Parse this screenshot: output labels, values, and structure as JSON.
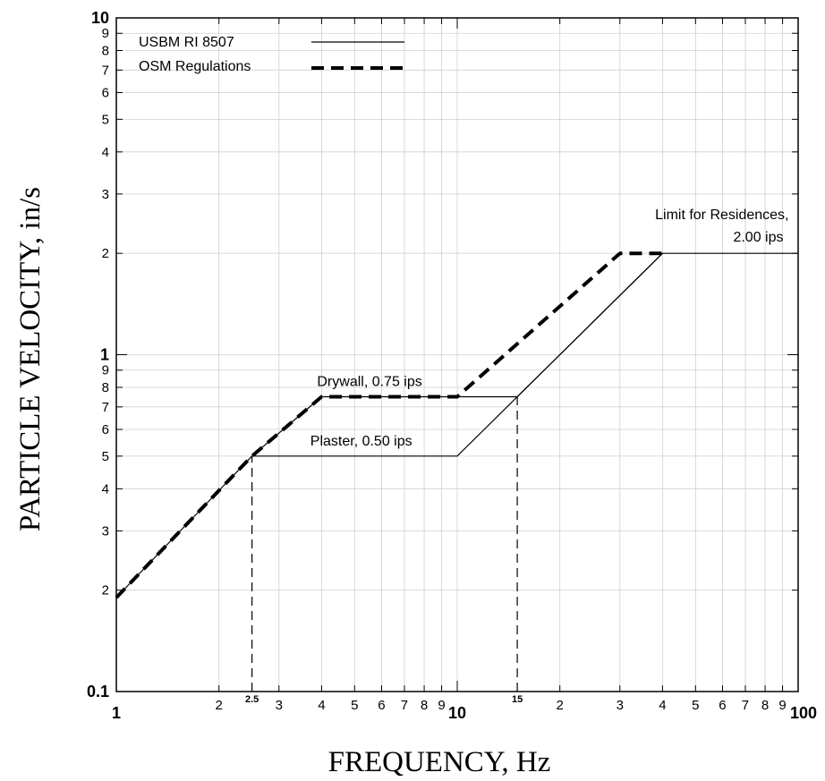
{
  "chart_data": {
    "type": "line",
    "xlabel": "FREQUENCY, Hz",
    "ylabel": "PARTICLE VELOCITY, in/s",
    "x_scale": "log",
    "y_scale": "log",
    "xlim": [
      1,
      100
    ],
    "ylim": [
      0.1,
      10
    ],
    "grid": true,
    "legend_position": "top-left",
    "x_major_ticks": [
      {
        "v": 1,
        "label": "1"
      },
      {
        "v": 10,
        "label": "10"
      },
      {
        "v": 100,
        "label": "100"
      }
    ],
    "x_minor_ticks": [
      {
        "v": 2,
        "label": "2"
      },
      {
        "v": 3,
        "label": "3"
      },
      {
        "v": 4,
        "label": "4"
      },
      {
        "v": 5,
        "label": "5"
      },
      {
        "v": 6,
        "label": "6"
      },
      {
        "v": 7,
        "label": "7"
      },
      {
        "v": 8,
        "label": "8"
      },
      {
        "v": 9,
        "label": "9"
      },
      {
        "v": 20,
        "label": "2"
      },
      {
        "v": 30,
        "label": "3"
      },
      {
        "v": 40,
        "label": "4"
      },
      {
        "v": 50,
        "label": "5"
      },
      {
        "v": 60,
        "label": "6"
      },
      {
        "v": 70,
        "label": "7"
      },
      {
        "v": 80,
        "label": "8"
      },
      {
        "v": 90,
        "label": "9"
      }
    ],
    "y_major_ticks": [
      {
        "v": 0.1,
        "label": "0.1"
      },
      {
        "v": 1,
        "label": "1"
      },
      {
        "v": 10,
        "label": "10"
      }
    ],
    "y_minor_ticks": [
      {
        "v": 0.2,
        "label": "2"
      },
      {
        "v": 0.3,
        "label": "3"
      },
      {
        "v": 0.4,
        "label": "4"
      },
      {
        "v": 0.5,
        "label": "5"
      },
      {
        "v": 0.6,
        "label": "6"
      },
      {
        "v": 0.7,
        "label": "7"
      },
      {
        "v": 0.8,
        "label": "8"
      },
      {
        "v": 0.9,
        "label": "9"
      },
      {
        "v": 2,
        "label": "2"
      },
      {
        "v": 3,
        "label": "3"
      },
      {
        "v": 4,
        "label": "4"
      },
      {
        "v": 5,
        "label": "5"
      },
      {
        "v": 6,
        "label": "6"
      },
      {
        "v": 7,
        "label": "7"
      },
      {
        "v": 8,
        "label": "8"
      },
      {
        "v": 9,
        "label": "9"
      }
    ],
    "x_special_ticks": [
      {
        "v": 2.5,
        "label": "2.5"
      },
      {
        "v": 15,
        "label": "15"
      }
    ],
    "series": [
      {
        "name": "USBM RI 8507",
        "style": "solid-thin",
        "color": "#000000",
        "points": [
          [
            1,
            0.19
          ],
          [
            2.5,
            0.5
          ],
          [
            4,
            0.75
          ],
          [
            10,
            0.75
          ],
          [
            15,
            0.75
          ],
          [
            40,
            2.0
          ],
          [
            100,
            2.0
          ]
        ],
        "branch": [
          [
            2.5,
            0.5
          ],
          [
            10,
            0.5
          ],
          [
            40,
            2.0
          ]
        ]
      },
      {
        "name": "OSM Regulations",
        "style": "dashed-thick",
        "color": "#000000",
        "points": [
          [
            1,
            0.19
          ],
          [
            2.5,
            0.5
          ],
          [
            4,
            0.75
          ],
          [
            10,
            0.75
          ],
          [
            30,
            2.0
          ],
          [
            40,
            2.0
          ]
        ]
      }
    ],
    "reference_lines": [
      {
        "x": 2.5,
        "y_from": 0.1,
        "y_to": 0.5
      },
      {
        "x": 15,
        "y_from": 0.1,
        "y_to": 0.75
      }
    ],
    "annotations": [
      {
        "text": "Drywall, 0.75 ips",
        "x": 4,
        "y": 0.75
      },
      {
        "text": "Plaster, 0.50 ips",
        "x": 3,
        "y": 0.5
      },
      {
        "text": "Limit for Residences,",
        "x": 95,
        "y": 2.0
      },
      {
        "text": "2.00 ips",
        "x": 95,
        "y": 2.0
      }
    ]
  }
}
